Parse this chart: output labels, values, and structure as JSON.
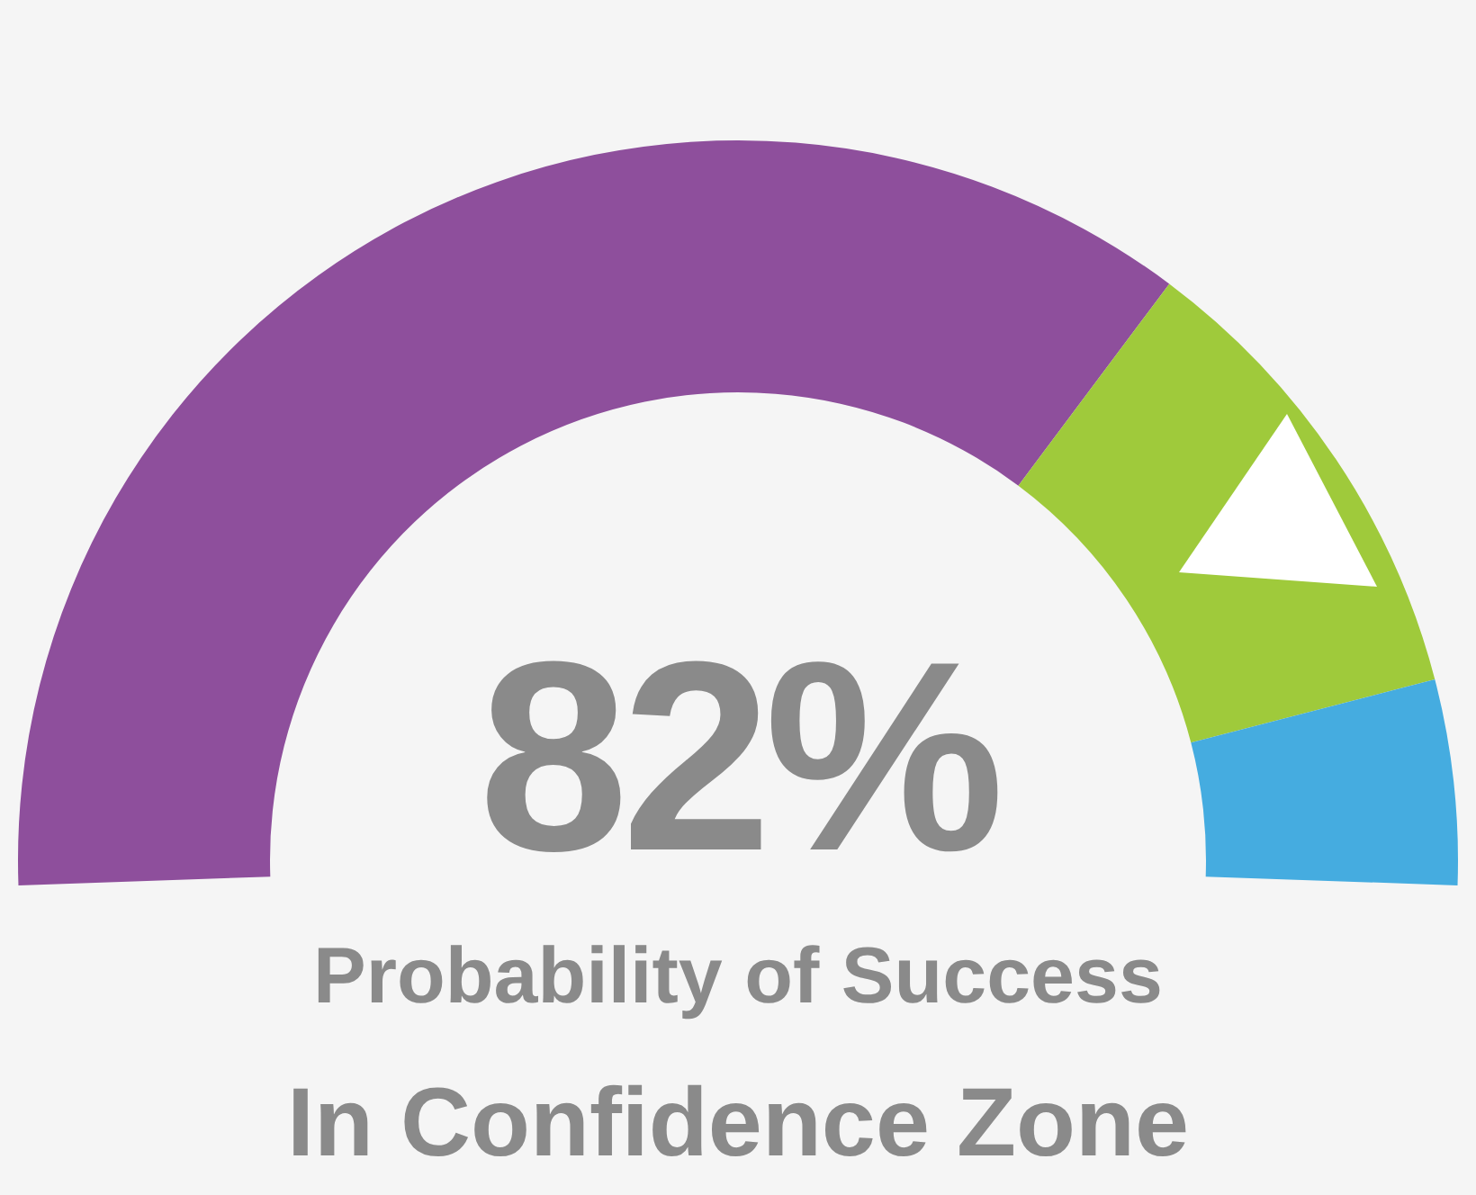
{
  "chart_data": {
    "type": "donut",
    "title": "82%",
    "subtitle": "Probability of Success",
    "annotations": [
      "In Confidence Zone"
    ],
    "categories": [
      null,
      null,
      null
    ],
    "values": [
      70,
      21,
      9
    ],
    "colors": [
      "#8e4f9c",
      "#9fca3b",
      "#45ace0"
    ]
  }
}
